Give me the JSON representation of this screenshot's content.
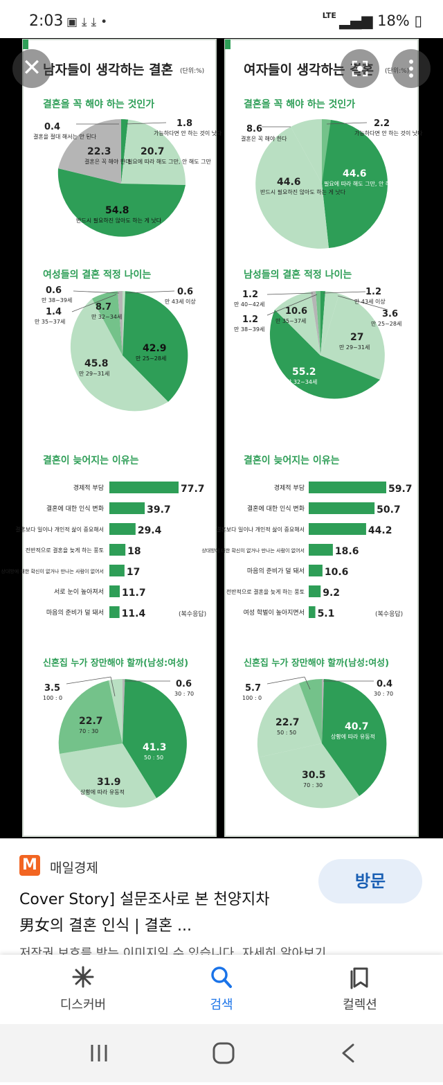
{
  "status_bar": {
    "time": "2:03",
    "network": "LTE",
    "battery": "18%"
  },
  "infographic": {
    "colors": {
      "dark": "#2e9e57",
      "light": "#b9dfc2",
      "mid": "#74c28a",
      "gray": "#b5b5b5"
    },
    "left": {
      "title": "남자들이 생각하는 결혼",
      "unit": "(단위:%)",
      "q1": {
        "heading": "결혼을 꼭 해야 하는 것인가",
        "slices": [
          {
            "value": "0.4",
            "label": "결혼을 절대 해서는 안 된다"
          },
          {
            "value": "1.8",
            "label": "가능하다면 안 하는 것이 낫다"
          },
          {
            "value": "20.7",
            "label": "필요에 따라 해도 그만, 안 해도 그만"
          },
          {
            "value": "54.8",
            "label": "반드시 필요하진 않아도 하는 게 낫다"
          },
          {
            "value": "22.3",
            "label": "결혼은 꼭 해야 한다"
          }
        ]
      },
      "q2": {
        "heading": "여성들의 결혼 적정 나이는",
        "slices": [
          {
            "value": "0.6",
            "label": "만 38~39세"
          },
          {
            "value": "1.4",
            "label": "만 35~37세"
          },
          {
            "value": "8.7",
            "label": "만 32~34세"
          },
          {
            "value": "0.6",
            "label": "만 43세 이상"
          },
          {
            "value": "42.9",
            "label": "만 25~28세"
          },
          {
            "value": "45.8",
            "label": "만 29~31세"
          }
        ]
      },
      "q3": {
        "heading": "결혼이 늦어지는 이유는",
        "note": "(복수응답)",
        "bars": [
          {
            "label": "경제적 부담",
            "value": 77.7,
            "text": "77.7"
          },
          {
            "label": "결혼에 대한 인식 변화",
            "value": 39.7,
            "text": "39.7"
          },
          {
            "label": "결혼보다 일이나 개인적 삶이 중요해서",
            "value": 29.4,
            "text": "29.4"
          },
          {
            "label": "전반적으로 결혼을 늦게 하는 풍토",
            "value": 18,
            "text": "18"
          },
          {
            "label": "상대방에 대한 확신이 없거나 만나는 사람이 없어서",
            "value": 17,
            "text": "17"
          },
          {
            "label": "서로 눈이 높아져서",
            "value": 11.7,
            "text": "11.7"
          },
          {
            "label": "마음의 준비가 덜 돼서",
            "value": 11.4,
            "text": "11.4"
          }
        ]
      },
      "q4": {
        "heading": "신혼집 누가 장만해야 할까(남성:여성)",
        "slices": [
          {
            "value": "3.5",
            "label": "100 : 0"
          },
          {
            "value": "0.6",
            "label": "30 : 70"
          },
          {
            "value": "41.3",
            "label": "50 : 50"
          },
          {
            "value": "31.9",
            "label": "상황에 따라 유동적"
          },
          {
            "value": "22.7",
            "label": "70 : 30"
          }
        ]
      }
    },
    "right": {
      "title": "여자들이 생각하는 결혼",
      "unit": "(단위:%)",
      "q1": {
        "heading": "결혼을 꼭 해야 하는 것인가",
        "slices": [
          {
            "value": "8.6",
            "label": "결혼은 꼭 해야 한다"
          },
          {
            "value": "2.2",
            "label": "가능하다면 안 하는 것이 낫다"
          },
          {
            "value": "44.6",
            "label": "필요에 따라 해도 그만, 안 해도 그만"
          },
          {
            "value": "44.6",
            "label": "반드시 필요하진 않아도 하는 게 낫다"
          }
        ]
      },
      "q2": {
        "heading": "남성들의 결혼 적정 나이는",
        "slices": [
          {
            "value": "1.2",
            "label": "만 40~42세"
          },
          {
            "value": "1.2",
            "label": "만 38~39세"
          },
          {
            "value": "10.6",
            "label": "만 35~37세"
          },
          {
            "value": "1.2",
            "label": "만 43세 이상"
          },
          {
            "value": "3.6",
            "label": "만 25~28세"
          },
          {
            "value": "27",
            "label": "만 29~31세"
          },
          {
            "value": "55.2",
            "label": "만 32~34세"
          }
        ]
      },
      "q3": {
        "heading": "결혼이 늦어지는 이유는",
        "note": "(복수응답)",
        "bars": [
          {
            "label": "경제적 부담",
            "value": 59.7,
            "text": "59.7"
          },
          {
            "label": "결혼에 대한 인식 변화",
            "value": 50.7,
            "text": "50.7"
          },
          {
            "label": "결혼보다 일이나 개인적 삶이 중요해서",
            "value": 44.2,
            "text": "44.2"
          },
          {
            "label": "상대방에 대한 확신이 없거나 만나는 사람이 없어서",
            "value": 18.6,
            "text": "18.6"
          },
          {
            "label": "마음의 준비가 덜 돼서",
            "value": 10.6,
            "text": "10.6"
          },
          {
            "label": "전반적으로 결혼을 늦게 하는 풍토",
            "value": 9.2,
            "text": "9.2"
          },
          {
            "label": "여성 학벌이 높아지면서",
            "value": 5.1,
            "text": "5.1"
          }
        ]
      },
      "q4": {
        "heading": "신혼집 누가 장만해야 할까(남성:여성)",
        "slices": [
          {
            "value": "5.7",
            "label": "100 : 0"
          },
          {
            "value": "0.4",
            "label": "30 : 70"
          },
          {
            "value": "40.7",
            "label": "상황에 따라 유동적"
          },
          {
            "value": "30.5",
            "label": "70 : 30"
          },
          {
            "value": "22.7",
            "label": "50 : 50"
          }
        ]
      }
    }
  },
  "result": {
    "source": "매일경제",
    "source_logo": "M",
    "title_line1": "Cover Story] 설문조사로 본 천양지차",
    "title_line2": "男女의 결혼 인식 | 결혼 ...",
    "visit_label": "방문",
    "notice": "저작권 보호를 받는 이미지일 수 있습니다. 자세히 알아보기"
  },
  "bottom_nav": {
    "items": [
      {
        "label": "디스커버",
        "icon": "discover-icon"
      },
      {
        "label": "검색",
        "icon": "search-icon"
      },
      {
        "label": "컬렉션",
        "icon": "collections-icon"
      }
    ]
  }
}
